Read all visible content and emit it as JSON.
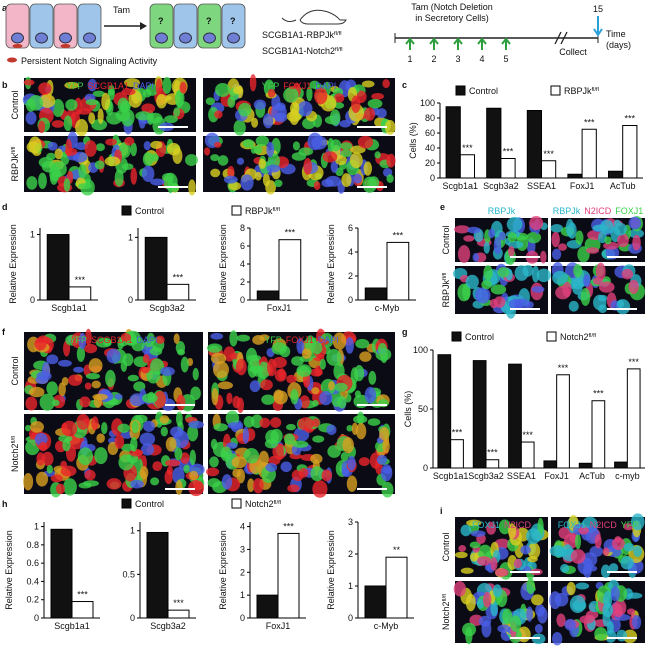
{
  "panel_letters": [
    "a",
    "b",
    "c",
    "d",
    "e",
    "f",
    "g",
    "h",
    "i"
  ],
  "schematic": {
    "stimulus": "Tam",
    "unknown_marks": [
      "?",
      "?",
      "?"
    ],
    "legend": "Persistent Notch Signaling Activity",
    "mouse_lines": [
      {
        "text": "SCGB1A1-RBPJk",
        "superscript": "fl/fl"
      },
      {
        "text": "SCGB1A1-Notch2",
        "superscript": "fl/fl"
      }
    ],
    "timeline_title": [
      "Tam (Notch Deletion",
      "in Secretory Cells)"
    ],
    "injection_days": [
      1,
      2,
      3,
      4,
      5
    ],
    "collect_day": 15,
    "collect_label": "Collect",
    "axis_label": [
      "Time",
      "(days)"
    ]
  },
  "images": {
    "b": {
      "stains": [
        [
          {
            "text": "YFP",
            "color": "#3bd14a"
          },
          {
            "text": "SCGB1A1",
            "color": "#e8262a"
          },
          {
            "text": "DAPI",
            "color": "#4a5fe6"
          }
        ],
        [
          {
            "text": "YFP",
            "color": "#3bd14a"
          },
          {
            "text": "FOXJ1",
            "color": "#e8262a"
          },
          {
            "text": "DAPI",
            "color": "#4a5fe6"
          }
        ]
      ],
      "rows": [
        {
          "text": "Control"
        },
        {
          "text": "RBPJk",
          "superscript": "fl/fl"
        }
      ]
    },
    "e": {
      "stains": [
        [
          {
            "text": "RBPJk",
            "color": "#2ab7c9"
          }
        ],
        [
          {
            "text": "RBPJk",
            "color": "#2ab7c9"
          },
          {
            "text": "N2ICD",
            "color": "#e0407a"
          },
          {
            "text": "FOXJ1",
            "color": "#3bd14a"
          }
        ]
      ],
      "rows": [
        {
          "text": "Control"
        },
        {
          "text": "RBPJk",
          "superscript": "fl/fl"
        }
      ]
    },
    "f": {
      "stains": [
        [
          {
            "text": "YFP",
            "color": "#3bd14a"
          },
          {
            "text": "SCGB1A1",
            "color": "#e8262a"
          },
          {
            "text": "DAPI",
            "color": "#4a5fe6"
          }
        ],
        [
          {
            "text": "YFP",
            "color": "#3bd14a"
          },
          {
            "text": "FOXJ1",
            "color": "#e8262a"
          },
          {
            "text": "DAPI",
            "color": "#4a5fe6"
          }
        ]
      ],
      "rows": [
        {
          "text": "Control"
        },
        {
          "text": "Notch2",
          "superscript": "fl/fl"
        }
      ]
    },
    "i": {
      "stains": [
        [
          {
            "text": "FOXJ1",
            "color": "#2ab7c9"
          },
          {
            "text": "N2ICD",
            "color": "#e0407a"
          }
        ],
        [
          {
            "text": "FOXJ1",
            "color": "#2ab7c9"
          },
          {
            "text": "N2ICD",
            "color": "#e0407a"
          },
          {
            "text": "YFP",
            "color": "#3bd14a"
          }
        ]
      ],
      "rows": [
        {
          "text": "Control"
        },
        {
          "text": "Notch2",
          "superscript": "fl/fl"
        }
      ]
    }
  },
  "legends": [
    [
      {
        "name": "Control",
        "color": "#111111"
      },
      {
        "name": "RBPJk",
        "superscript": "fl/fl",
        "color": "#ffffff"
      }
    ],
    [
      {
        "name": "Control",
        "color": "#111111"
      },
      {
        "name": "Notch2",
        "superscript": "fl/fl",
        "color": "#ffffff"
      }
    ]
  ],
  "chart_data": [
    {
      "type": "bar",
      "y_label": "Cells (%)",
      "categories": [
        "Scgb1a1",
        "Scgb3a2",
        "SSEA1",
        "FoxJ1",
        "AcTub"
      ],
      "series": [
        {
          "name": "Control",
          "color": "#111111",
          "values": [
            95,
            93,
            90,
            5,
            9
          ]
        },
        {
          "name": "RBPJk",
          "name_superscript": "fl/fl",
          "color": "#ffffff",
          "values": [
            31,
            26,
            23,
            65,
            70
          ],
          "significance": [
            "***",
            "***",
            "***",
            "***",
            "***"
          ]
        }
      ],
      "ylim": [
        0,
        100
      ],
      "yticks": [
        0,
        20,
        40,
        60,
        80,
        100
      ]
    },
    {
      "type": "bar",
      "y_label": "Relative Expression",
      "categories": [
        "Scgb1a1"
      ],
      "series": [
        {
          "color": "#111111",
          "values": [
            1.0
          ]
        },
        {
          "color": "#ffffff",
          "values": [
            0.2
          ],
          "significance": [
            "***"
          ]
        }
      ],
      "ylim": [
        0,
        1.1
      ],
      "yticks": [
        0,
        1
      ]
    },
    {
      "type": "bar",
      "categories": [
        "Scgb3a2"
      ],
      "series": [
        {
          "color": "#111111",
          "values": [
            1.0
          ]
        },
        {
          "color": "#ffffff",
          "values": [
            0.25
          ],
          "significance": [
            "***"
          ]
        }
      ],
      "ylim": [
        0,
        1.15
      ],
      "yticks": [
        0,
        1
      ]
    },
    {
      "type": "bar",
      "y_label": "Relative Expression",
      "categories": [
        "FoxJ1"
      ],
      "series": [
        {
          "color": "#111111",
          "values": [
            1.0
          ]
        },
        {
          "color": "#ffffff",
          "values": [
            6.7
          ],
          "significance": [
            "***"
          ]
        }
      ],
      "ylim": [
        0,
        8
      ],
      "yticks": [
        0,
        2,
        4,
        6,
        8
      ]
    },
    {
      "type": "bar",
      "y_label": "Relative Expression",
      "categories": [
        "c-Myb"
      ],
      "series": [
        {
          "color": "#111111",
          "values": [
            1.0
          ]
        },
        {
          "color": "#ffffff",
          "values": [
            4.8
          ],
          "significance": [
            "***"
          ]
        }
      ],
      "ylim": [
        0,
        6
      ],
      "yticks": [
        0,
        2,
        4,
        6
      ]
    },
    {
      "type": "bar",
      "y_label": "Cells (%)",
      "categories": [
        "Scgb1a1",
        "Scgb3a2",
        "SSEA1",
        "FoxJ1",
        "AcTub",
        "c-myb"
      ],
      "series": [
        {
          "name": "Control",
          "color": "#111111",
          "values": [
            96,
            91,
            88,
            6,
            4,
            5
          ]
        },
        {
          "name": "Notch2",
          "name_superscript": "fl/fl",
          "color": "#ffffff",
          "values": [
            24,
            7,
            22,
            79,
            57,
            84
          ],
          "significance": [
            "***",
            "***",
            "***",
            "***",
            "***",
            "***"
          ]
        }
      ],
      "ylim": [
        0,
        100
      ],
      "yticks": [
        0,
        50,
        100
      ]
    },
    {
      "type": "bar",
      "y_label": "Relative Expression",
      "categories": [
        "Scgb1a1"
      ],
      "series": [
        {
          "color": "#111111",
          "values": [
            0.97
          ]
        },
        {
          "color": "#ffffff",
          "values": [
            0.18
          ],
          "significance": [
            "***"
          ]
        }
      ],
      "ylim": [
        0,
        1.05
      ],
      "yticks": [
        0,
        0.2,
        0.4,
        0.6,
        0.8,
        1
      ]
    },
    {
      "type": "bar",
      "categories": [
        "Scgb3a2"
      ],
      "series": [
        {
          "color": "#111111",
          "values": [
            0.98
          ]
        },
        {
          "color": "#ffffff",
          "values": [
            0.09
          ],
          "significance": [
            "***"
          ]
        }
      ],
      "ylim": [
        0,
        1.1
      ],
      "yticks": [
        0,
        0.5,
        1
      ]
    },
    {
      "type": "bar",
      "y_label": "Relative Expression",
      "categories": [
        "FoxJ1"
      ],
      "series": [
        {
          "color": "#111111",
          "values": [
            1.0
          ]
        },
        {
          "color": "#ffffff",
          "values": [
            3.7
          ],
          "significance": [
            "***"
          ]
        }
      ],
      "ylim": [
        0,
        4.2
      ],
      "yticks": [
        0,
        1,
        2,
        3,
        4
      ]
    },
    {
      "type": "bar",
      "y_label": "Relative Expression",
      "categories": [
        "c-Myb"
      ],
      "series": [
        {
          "color": "#111111",
          "values": [
            1.0
          ]
        },
        {
          "color": "#ffffff",
          "values": [
            1.9
          ],
          "significance": [
            "**"
          ]
        }
      ],
      "ylim": [
        0,
        3
      ],
      "yticks": [
        0,
        1,
        2,
        3
      ]
    }
  ]
}
